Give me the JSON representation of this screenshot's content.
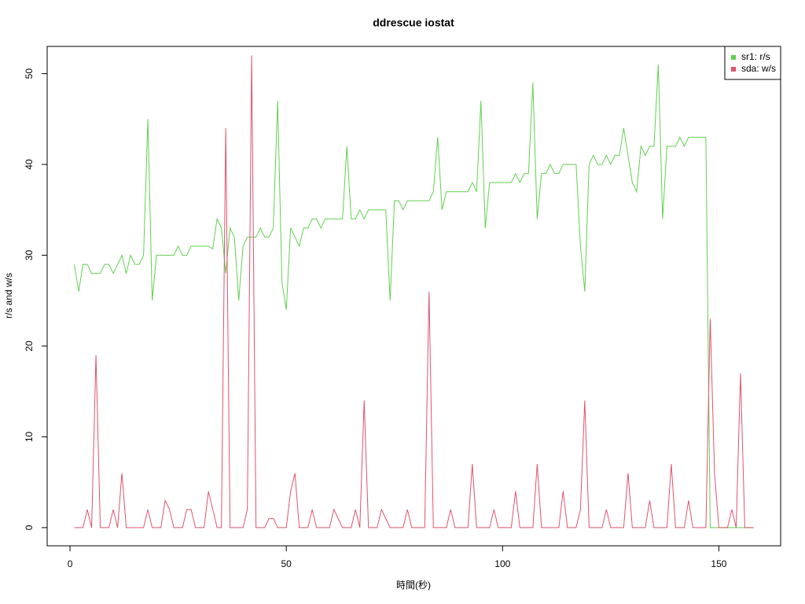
{
  "chart_data": {
    "type": "line",
    "title": "ddrescue iostat",
    "x_label": "時間(秒)",
    "y_label": "r/s and w/s",
    "x": [
      1,
      2,
      3,
      4,
      5,
      6,
      7,
      8,
      9,
      10,
      11,
      12,
      13,
      14,
      15,
      16,
      17,
      18,
      19,
      20,
      21,
      22,
      23,
      24,
      25,
      26,
      27,
      28,
      29,
      30,
      31,
      32,
      33,
      34,
      35,
      36,
      37,
      38,
      39,
      40,
      41,
      42,
      43,
      44,
      45,
      46,
      47,
      48,
      49,
      50,
      51,
      52,
      53,
      54,
      55,
      56,
      57,
      58,
      59,
      60,
      61,
      62,
      63,
      64,
      65,
      66,
      67,
      68,
      69,
      70,
      71,
      72,
      73,
      74,
      75,
      76,
      77,
      78,
      79,
      80,
      81,
      82,
      83,
      84,
      85,
      86,
      87,
      88,
      89,
      90,
      91,
      92,
      93,
      94,
      95,
      96,
      97,
      98,
      99,
      100,
      101,
      102,
      103,
      104,
      105,
      106,
      107,
      108,
      109,
      110,
      111,
      112,
      113,
      114,
      115,
      116,
      117,
      118,
      119,
      120,
      121,
      122,
      123,
      124,
      125,
      126,
      127,
      128,
      129,
      130,
      131,
      132,
      133,
      134,
      135,
      136,
      137,
      138,
      139,
      140,
      141,
      142,
      143,
      144,
      145,
      146,
      147,
      148,
      149,
      150,
      151,
      152,
      153,
      154,
      155,
      156,
      157,
      158
    ],
    "series": [
      {
        "name": "sr1: r/s",
        "color": "#61D04F",
        "values": [
          29,
          26,
          29,
          29,
          28,
          28,
          28,
          29,
          29,
          28,
          29,
          30,
          28,
          30,
          29,
          29,
          30,
          45,
          25,
          30,
          30,
          30,
          30,
          30,
          31,
          30,
          30,
          31,
          31,
          31,
          31,
          31,
          30.7,
          34,
          33,
          28,
          33,
          32,
          25,
          31,
          32,
          32,
          32,
          33,
          32,
          32,
          33,
          47,
          27,
          24,
          33,
          32,
          31,
          33,
          33,
          34,
          34,
          33,
          34,
          34,
          34,
          34,
          34,
          42,
          34,
          34,
          35,
          34,
          35,
          35,
          35,
          35,
          35,
          25,
          36,
          36,
          35,
          36,
          36,
          36,
          36,
          36,
          36,
          37,
          43,
          35,
          37,
          37,
          37,
          37,
          37,
          37,
          38,
          37,
          47,
          33,
          38,
          38,
          38,
          38,
          38,
          38,
          39,
          38,
          39,
          39,
          49,
          34,
          39,
          39,
          40,
          39,
          39,
          40,
          40,
          40,
          40,
          31,
          26,
          40,
          41,
          40,
          40,
          41,
          40,
          41,
          41,
          44,
          41,
          38,
          37,
          42,
          41,
          42,
          42,
          51,
          34,
          42,
          42,
          42,
          43,
          42,
          43,
          43,
          43,
          43,
          43,
          0,
          0,
          0,
          0,
          0,
          0,
          0,
          0,
          0,
          0,
          0
        ]
      },
      {
        "name": "sda: w/s",
        "color": "#DF536B",
        "values": [
          0,
          0,
          0,
          2,
          0,
          19,
          0,
          0,
          0,
          2,
          0,
          6,
          0,
          0,
          0,
          0,
          0,
          2,
          0,
          0,
          0,
          3,
          2,
          0,
          0,
          0,
          2,
          2,
          0,
          0,
          0,
          4,
          2,
          0,
          0,
          44,
          0,
          0,
          0,
          0,
          2,
          52,
          0,
          0,
          0,
          1,
          1,
          0,
          0,
          0,
          4,
          6,
          0,
          0,
          0,
          2,
          0,
          0,
          0,
          0,
          2,
          1,
          0,
          0,
          0,
          2,
          0,
          14,
          0,
          0,
          0,
          2,
          1,
          0,
          0,
          0,
          0,
          2,
          0,
          0,
          0,
          0,
          26,
          0,
          0,
          0,
          0,
          2,
          0,
          0,
          0,
          0,
          7,
          0,
          0,
          0,
          0,
          2,
          0,
          0,
          0,
          0,
          4,
          0,
          0,
          0,
          0,
          7,
          0,
          0,
          0,
          0,
          0,
          4,
          0,
          0,
          0,
          2,
          14,
          0,
          0,
          0,
          0,
          2,
          0,
          0,
          0,
          0,
          6,
          0,
          0,
          0,
          0,
          3,
          0,
          0,
          0,
          0,
          7,
          0,
          0,
          0,
          3,
          0,
          0,
          0,
          0,
          23,
          6,
          0,
          0,
          0,
          2,
          0,
          17,
          0,
          0,
          0
        ]
      }
    ],
    "xlim": [
      -5.28,
      164.28
    ],
    "xticks": [
      0,
      50,
      100,
      150
    ],
    "ylim": [
      -2,
      53
    ],
    "yticks": [
      0,
      10,
      20,
      30,
      40,
      50
    ],
    "legend": "topright"
  }
}
